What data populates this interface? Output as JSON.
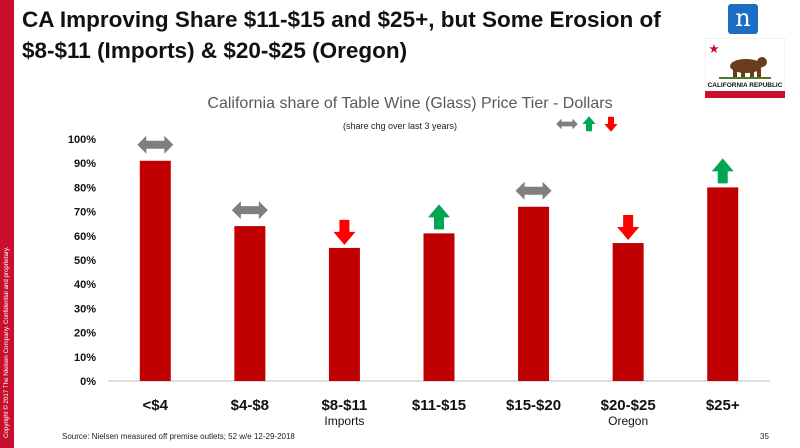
{
  "slide": {
    "title": "CA Improving Share $11-$15 and $25+, but Some Erosion of $8-$11 (Imports) & $20-$25 (Oregon)",
    "copyright": "Copyright © 2017 The Nielsen Company. Confidential and proprietary.",
    "logo_text": "n",
    "flag_text": "CALIFORNIA REPUBLIC",
    "source": "Source: Nielsen measured off premise outlets; 52 w/e 12-29-2018",
    "page_number": "35"
  },
  "chart_data": {
    "type": "bar",
    "title": "California share of Table Wine (Glass) Price Tier - Dollars",
    "subtitle": "(share chg over last 3 years)",
    "categories": [
      "<$4",
      "$4-$8",
      "$8-$11",
      "$11-$15",
      "$15-$20",
      "$20-$25",
      "$25+"
    ],
    "category_sublabels": [
      "",
      "",
      "Imports",
      "",
      "",
      "Oregon",
      ""
    ],
    "values": [
      91,
      64,
      55,
      61,
      72,
      57,
      80
    ],
    "share_change": [
      "flat",
      "flat",
      "down",
      "up",
      "flat",
      "down",
      "up"
    ],
    "y_tick_labels": [
      "0%",
      "10%",
      "20%",
      "30%",
      "40%",
      "50%",
      "60%",
      "70%",
      "80%",
      "90%",
      "100%"
    ],
    "ylim": [
      0,
      100
    ],
    "grid": false,
    "legend": "top-right",
    "colors": {
      "bar": "#c00000",
      "flat": "#7f7f7f",
      "up": "#00a651",
      "down": "#ff0000"
    }
  }
}
